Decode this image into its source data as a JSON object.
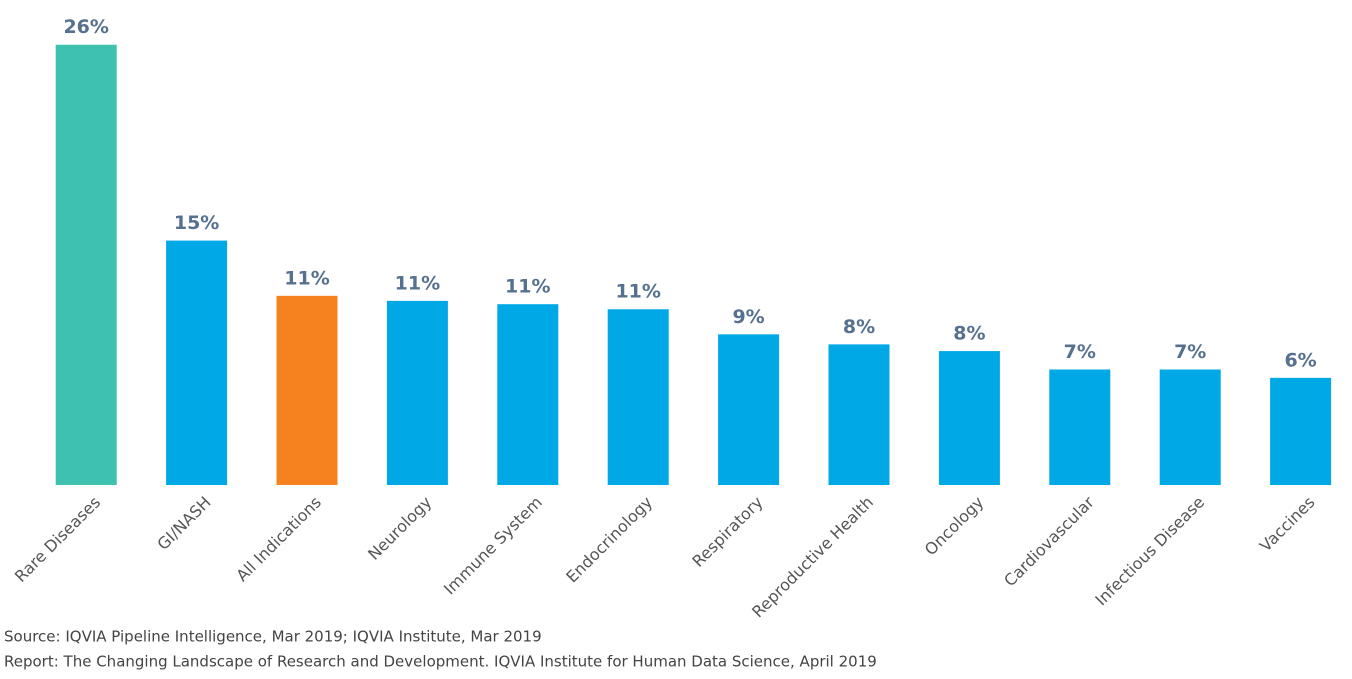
{
  "chart_data": {
    "type": "bar",
    "categories": [
      "Rare Diseases",
      "GI/NASH",
      "All Indications",
      "Neurology",
      "Immune System",
      "Endocrinology",
      "Respiratory",
      "Reproductive Health",
      "Oncology",
      "Cardiovascular",
      "Infectious Disease",
      "Vaccines"
    ],
    "values": [
      26.3,
      14.6,
      11.3,
      11.0,
      10.8,
      10.5,
      9.0,
      8.4,
      8.0,
      6.9,
      6.9,
      6.4
    ],
    "value_labels": [
      "26%",
      "15%",
      "11%",
      "11%",
      "11%",
      "11%",
      "9%",
      "8%",
      "8%",
      "7%",
      "7%",
      "6%"
    ],
    "colors": [
      "#3fc1b0",
      "#00a9e6",
      "#f5821f",
      "#00a9e6",
      "#00a9e6",
      "#00a9e6",
      "#00a9e6",
      "#00a9e6",
      "#00a9e6",
      "#00a9e6",
      "#00a9e6",
      "#00a9e6"
    ],
    "ylim": [
      0,
      27
    ],
    "notes": [
      "Source: IQVIA Pipeline Intelligence, Mar 2019; IQVIA Institute, Mar 2019",
      "Report: The Changing Landscape of Research and Development. IQVIA Institute for Human Data Science, April 2019"
    ]
  }
}
